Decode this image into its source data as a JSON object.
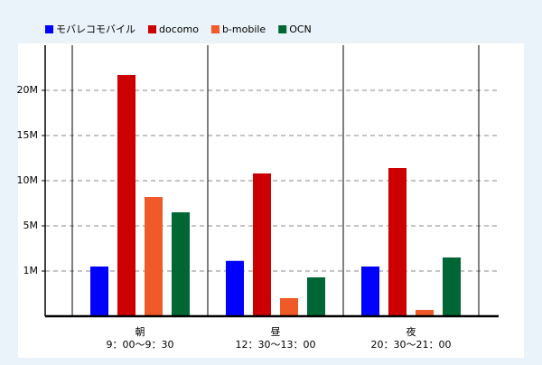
{
  "chart_data": {
    "type": "bar",
    "categories": [
      "朝",
      "昼",
      "夜"
    ],
    "category_times": [
      "9：00～9：30",
      "12：30～13：00",
      "20：30～21：00"
    ],
    "series": [
      {
        "name": "モバレコモバイル",
        "color": "#0000ff",
        "values": [
          1400000,
          1900000,
          1400000
        ]
      },
      {
        "name": "docomo",
        "color": "#cc0000",
        "values": [
          21700000,
          10800000,
          11400000
        ]
      },
      {
        "name": "b-mobile",
        "color": "#f05a28",
        "values": [
          8200000,
          400000,
          140000
        ]
      },
      {
        "name": "OCN",
        "color": "#006633",
        "values": [
          6500000,
          860000,
          2200000
        ]
      }
    ],
    "ylim": [
      0,
      25000000
    ],
    "yticks": [
      {
        "value": 1000000,
        "label": "1M"
      },
      {
        "value": 5000000,
        "label": "5M"
      },
      {
        "value": 10000000,
        "label": "10M"
      },
      {
        "value": 15000000,
        "label": "15M"
      },
      {
        "value": 20000000,
        "label": "20M"
      }
    ],
    "grid": true,
    "legend": "top-left"
  }
}
